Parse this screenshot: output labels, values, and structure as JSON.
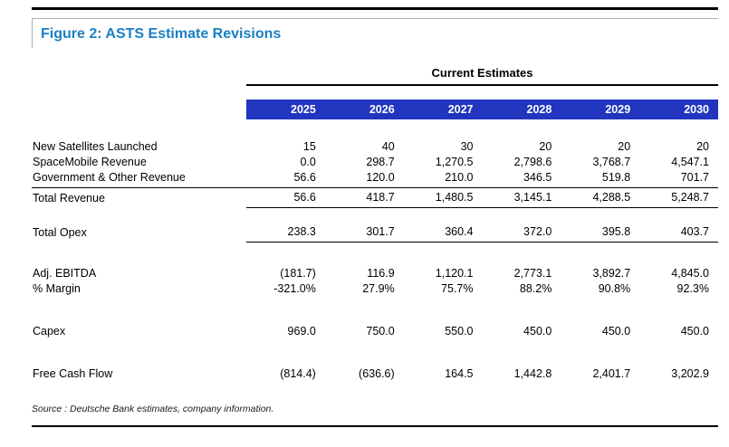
{
  "figure": {
    "title": "Figure 2: ASTS Estimate Revisions",
    "group_header": "Current Estimates",
    "source": "Source : Deutsche Bank estimates, company information."
  },
  "table": {
    "years": [
      "2025",
      "2026",
      "2027",
      "2028",
      "2029",
      "2030"
    ],
    "rows": [
      {
        "label": "New Satellites Launched",
        "values": [
          "15",
          "40",
          "30",
          "20",
          "20",
          "20"
        ]
      },
      {
        "label": "SpaceMobile Revenue",
        "values": [
          "0.0",
          "298.7",
          "1,270.5",
          "2,798.6",
          "3,768.7",
          "4,547.1"
        ]
      },
      {
        "label": "Government & Other Revenue",
        "values": [
          "56.6",
          "120.0",
          "210.0",
          "346.5",
          "519.8",
          "701.7"
        ]
      },
      {
        "label": "Total Revenue",
        "values": [
          "56.6",
          "418.7",
          "1,480.5",
          "3,145.1",
          "4,288.5",
          "5,248.7"
        ]
      },
      {
        "label": "Total Opex",
        "values": [
          "238.3",
          "301.7",
          "360.4",
          "372.0",
          "395.8",
          "403.7"
        ]
      },
      {
        "label": "Adj. EBITDA",
        "values": [
          "(181.7)",
          "116.9",
          "1,120.1",
          "2,773.1",
          "3,892.7",
          "4,845.0"
        ]
      },
      {
        "label": "% Margin",
        "values": [
          "-321.0%",
          "27.9%",
          "75.7%",
          "88.2%",
          "90.8%",
          "92.3%"
        ]
      },
      {
        "label": "Capex",
        "values": [
          "969.0",
          "750.0",
          "550.0",
          "450.0",
          "450.0",
          "450.0"
        ]
      },
      {
        "label": "Free Cash Flow",
        "values": [
          "(814.4)",
          "(636.6)",
          "164.5",
          "1,442.8",
          "2,401.7",
          "3,202.9"
        ]
      }
    ]
  },
  "colors": {
    "title_blue": "#1b80c4",
    "header_blue": "#2135be"
  }
}
